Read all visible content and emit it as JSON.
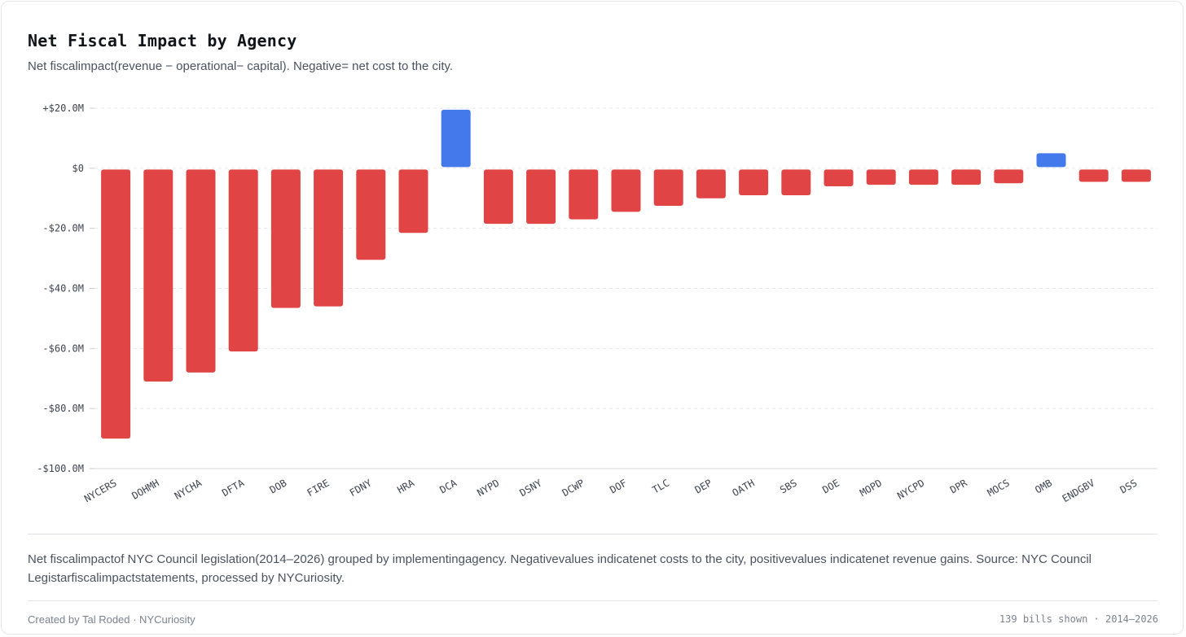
{
  "title": "Net Fiscal Impact by Agency",
  "subtitle": "Net fiscalimpact(revenue − operational− capital).  Negative= net cost to the city.",
  "description": "Net fiscalimpactof NYC  Council legislation(2014–2026)  grouped by implementingagency.  Negativevalues indicatenet costs to the city,  positivevalues indicatenet revenue gains.  Source:  NYC  Council Legistarfiscalimpactstatements,  processed by NYCuriosity.",
  "credit": "Created by Tal Roded · NYCuriosity",
  "meta": "139 bills shown · 2014–2026",
  "colors": {
    "negative": "#e04444",
    "positive": "#4479ec",
    "grid": "#e4e6ea"
  },
  "chart_data": {
    "type": "bar",
    "title": "Net Fiscal Impact by Agency",
    "xlabel": "",
    "ylabel": "",
    "units": "$M",
    "ylim": [
      -100,
      20
    ],
    "y_ticks": [
      20,
      0,
      -20,
      -40,
      -60,
      -80,
      -100
    ],
    "y_tick_labels": [
      "+$20.0M",
      "$0",
      "-$20.0M",
      "-$40.0M",
      "-$60.0M",
      "-$80.0M",
      "-$100.0M"
    ],
    "grid": true,
    "categories": [
      "NYCERS",
      "DOHMH",
      "NYCHA",
      "DFTA",
      "DOB",
      "FIRE",
      "FDNY",
      "HRA",
      "DCA",
      "NYPD",
      "DSNY",
      "DCWP",
      "DOF",
      "TLC",
      "DEP",
      "OATH",
      "SBS",
      "DOE",
      "MOPD",
      "NYCPD",
      "DPR",
      "MOCS",
      "OMB",
      "ENDGBV",
      "DSS"
    ],
    "values": [
      -90,
      -71,
      -68,
      -61,
      -46.5,
      -46,
      -30.5,
      -21.5,
      19.5,
      -18.5,
      -18.5,
      -17,
      -14.5,
      -12.5,
      -10,
      -9,
      -9,
      -6,
      -5.5,
      -5.5,
      -5.5,
      -5,
      5,
      -4.5,
      -4.5
    ]
  }
}
